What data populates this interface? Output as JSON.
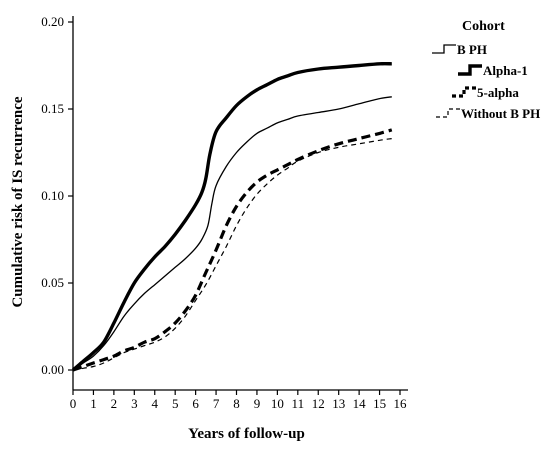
{
  "chart_data": {
    "type": "line",
    "title": "",
    "xlabel": "Years of follow-up",
    "ylabel": "Cumulative risk of IS recurrence",
    "xlim": [
      0,
      16
    ],
    "ylim": [
      0,
      0.2
    ],
    "x_ticks": [
      "0",
      "1",
      "2",
      "3",
      "4",
      "5",
      "6",
      "7",
      "8",
      "9",
      "10",
      "11",
      "12",
      "13",
      "14",
      "15",
      "16"
    ],
    "y_ticks": [
      "0.00",
      "0.05",
      "0.10",
      "0.15",
      "0.20"
    ],
    "grid": false,
    "legend": {
      "title": "Cohort",
      "position": "top-right"
    },
    "series": [
      {
        "name": "B PH",
        "style": "thin-solid",
        "x": [
          0,
          0.5,
          1,
          1.5,
          2,
          2.5,
          3,
          3.5,
          4,
          4.5,
          5,
          5.5,
          6,
          6.3,
          6.6,
          6.8,
          7,
          7.5,
          8,
          8.5,
          9,
          9.5,
          10,
          10.5,
          11,
          12,
          13,
          14,
          15,
          15.6
        ],
        "y": [
          0,
          0.004,
          0.008,
          0.014,
          0.022,
          0.031,
          0.038,
          0.044,
          0.049,
          0.054,
          0.059,
          0.064,
          0.07,
          0.075,
          0.083,
          0.096,
          0.106,
          0.117,
          0.125,
          0.131,
          0.136,
          0.139,
          0.142,
          0.144,
          0.146,
          0.148,
          0.15,
          0.153,
          0.156,
          0.157
        ]
      },
      {
        "name": "Alpha-1",
        "style": "thick-solid",
        "x": [
          0,
          0.5,
          1,
          1.5,
          2,
          2.5,
          3,
          3.5,
          4,
          4.5,
          5,
          5.5,
          6,
          6.3,
          6.5,
          6.7,
          7,
          7.5,
          8,
          8.5,
          9,
          9.5,
          10,
          10.5,
          11,
          12,
          13,
          14,
          15,
          15.6
        ],
        "y": [
          0,
          0.005,
          0.01,
          0.016,
          0.027,
          0.039,
          0.05,
          0.058,
          0.065,
          0.071,
          0.078,
          0.086,
          0.095,
          0.102,
          0.11,
          0.124,
          0.137,
          0.145,
          0.152,
          0.157,
          0.161,
          0.164,
          0.167,
          0.169,
          0.171,
          0.173,
          0.174,
          0.175,
          0.176,
          0.176
        ]
      },
      {
        "name": "5-alpha",
        "style": "thick-dashed",
        "x": [
          0,
          0.5,
          1,
          1.5,
          2,
          2.5,
          3,
          3.5,
          4,
          4.5,
          5,
          5.5,
          6,
          6.5,
          7,
          7.5,
          8,
          8.5,
          9,
          9.5,
          10,
          10.5,
          11,
          12,
          13,
          14,
          15,
          15.6
        ],
        "y": [
          0,
          0.002,
          0.004,
          0.006,
          0.008,
          0.011,
          0.013,
          0.016,
          0.018,
          0.022,
          0.027,
          0.034,
          0.043,
          0.056,
          0.069,
          0.083,
          0.094,
          0.102,
          0.108,
          0.112,
          0.115,
          0.118,
          0.121,
          0.126,
          0.13,
          0.133,
          0.136,
          0.138
        ]
      },
      {
        "name": "Without B PH",
        "style": "thin-dashed",
        "x": [
          0,
          0.5,
          1,
          1.5,
          2,
          2.5,
          3,
          3.5,
          4,
          4.5,
          5,
          5.5,
          6,
          6.5,
          7,
          7.5,
          8,
          8.5,
          9,
          9.5,
          10,
          10.5,
          11,
          12,
          13,
          14,
          15,
          15.6
        ],
        "y": [
          0,
          0.001,
          0.002,
          0.004,
          0.007,
          0.01,
          0.012,
          0.014,
          0.016,
          0.019,
          0.024,
          0.031,
          0.04,
          0.049,
          0.06,
          0.071,
          0.083,
          0.093,
          0.101,
          0.107,
          0.112,
          0.116,
          0.12,
          0.125,
          0.128,
          0.13,
          0.132,
          0.133
        ]
      }
    ]
  },
  "colors": {
    "line": "#000000",
    "background": "#ffffff"
  }
}
